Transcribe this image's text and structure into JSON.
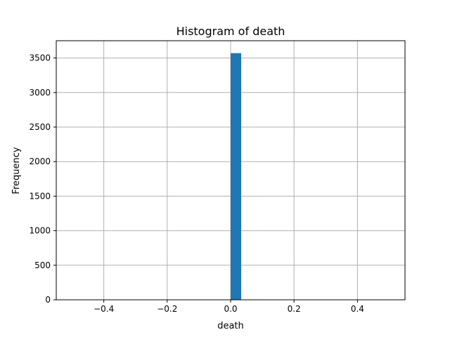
{
  "chart_data": {
    "type": "bar",
    "title": "Histogram of death",
    "xlabel": "death",
    "ylabel": "Frequency",
    "xlim": [
      -0.55,
      0.55
    ],
    "ylim": [
      0,
      3750
    ],
    "xticks": [
      -0.4,
      -0.2,
      0.0,
      0.2,
      0.4
    ],
    "xtick_labels": [
      "−0.4",
      "−0.2",
      "0.0",
      "0.2",
      "0.4"
    ],
    "yticks": [
      0,
      500,
      1000,
      1500,
      2000,
      2500,
      3000,
      3500
    ],
    "ytick_labels": [
      "0",
      "500",
      "1000",
      "1500",
      "2000",
      "2500",
      "3000",
      "3500"
    ],
    "grid": true,
    "bars": [
      {
        "x0": 0.0,
        "x1": 0.0333,
        "value": 3570
      }
    ],
    "bar_color": "#1f77b4",
    "grid_color": "#b0b0b0"
  }
}
